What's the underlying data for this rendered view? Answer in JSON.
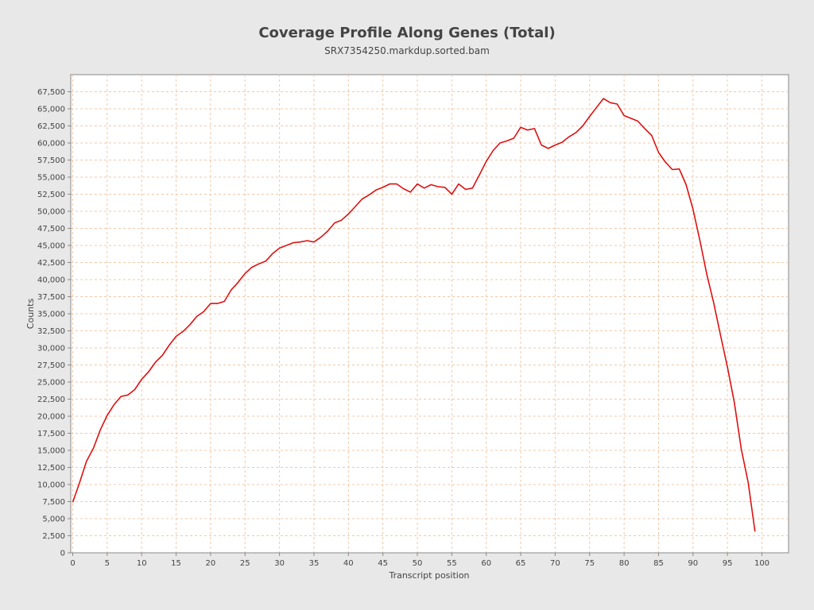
{
  "chart_data": {
    "type": "line",
    "title": "Coverage Profile Along Genes (Total)",
    "subtitle": "SRX7354250.markdup.sorted.bam",
    "xlabel": "Transcript position",
    "ylabel": "Counts",
    "xlim": [
      0,
      104
    ],
    "ylim": [
      0,
      70000
    ],
    "x_ticks": [
      0,
      5,
      10,
      15,
      20,
      25,
      30,
      35,
      40,
      45,
      50,
      55,
      60,
      65,
      70,
      75,
      80,
      85,
      90,
      95,
      100
    ],
    "y_ticks": [
      0,
      2500,
      5000,
      7500,
      10000,
      12500,
      15000,
      17500,
      20000,
      22500,
      25000,
      27500,
      30000,
      32500,
      35000,
      37500,
      40000,
      42500,
      45000,
      47500,
      50000,
      52500,
      55000,
      57500,
      60000,
      62500,
      65000,
      67500
    ],
    "x_tick_labels": [
      "0",
      "5",
      "10",
      "15",
      "20",
      "25",
      "30",
      "35",
      "40",
      "45",
      "50",
      "55",
      "60",
      "65",
      "70",
      "75",
      "80",
      "85",
      "90",
      "95",
      "100"
    ],
    "y_tick_labels": [
      "0",
      "2,500",
      "5,000",
      "7,500",
      "10,000",
      "12,500",
      "15,000",
      "17,500",
      "20,000",
      "22,500",
      "25,000",
      "27,500",
      "30,000",
      "32,500",
      "35,000",
      "37,500",
      "40,000",
      "42,500",
      "45,000",
      "47,500",
      "50,000",
      "52,500",
      "55,000",
      "57,500",
      "60,000",
      "62,500",
      "65,000",
      "67,500"
    ],
    "grid": true,
    "series": [
      {
        "color": "#dd1111",
        "x": [
          0,
          1,
          2,
          3,
          4,
          5,
          6,
          7,
          8,
          9,
          10,
          11,
          12,
          13,
          14,
          15,
          16,
          17,
          18,
          19,
          20,
          21,
          22,
          23,
          24,
          25,
          26,
          27,
          28,
          29,
          30,
          31,
          32,
          33,
          34,
          35,
          36,
          37,
          38,
          39,
          40,
          41,
          42,
          43,
          44,
          45,
          46,
          47,
          48,
          49,
          50,
          51,
          52,
          53,
          54,
          55,
          56,
          57,
          58,
          59,
          60,
          61,
          62,
          63,
          64,
          65,
          66,
          67,
          68,
          69,
          70,
          71,
          72,
          73,
          74,
          75,
          76,
          77,
          78,
          79,
          80,
          81,
          82,
          83,
          84,
          85,
          86,
          87,
          88,
          89,
          90,
          91,
          92,
          93,
          94,
          95,
          96,
          97,
          98,
          99
        ],
        "y": [
          7400,
          10300,
          13400,
          15300,
          18000,
          20100,
          21700,
          22900,
          23100,
          23900,
          25400,
          26500,
          27900,
          28900,
          30400,
          31700,
          32400,
          33400,
          34600,
          35300,
          36500,
          36500,
          36800,
          38500,
          39600,
          40900,
          41800,
          42300,
          42700,
          43800,
          44600,
          45000,
          45400,
          45500,
          45700,
          45500,
          46200,
          47100,
          48300,
          48700,
          49600,
          50700,
          51800,
          52400,
          53100,
          53500,
          54000,
          54000,
          53300,
          52800,
          54000,
          53400,
          53900,
          53600,
          53500,
          52500,
          54000,
          53200,
          53400,
          55300,
          57300,
          58900,
          60000,
          60300,
          60700,
          62300,
          61900,
          62100,
          59700,
          59200,
          59700,
          60100,
          60900,
          61500,
          62500,
          63900,
          65200,
          66500,
          65900,
          65700,
          64000,
          63600,
          63200,
          62100,
          61100,
          58600,
          57200,
          56100,
          56200,
          53900,
          50300,
          45700,
          40800,
          36600,
          31800,
          27200,
          22000,
          15200,
          10300,
          3100
        ]
      }
    ]
  }
}
